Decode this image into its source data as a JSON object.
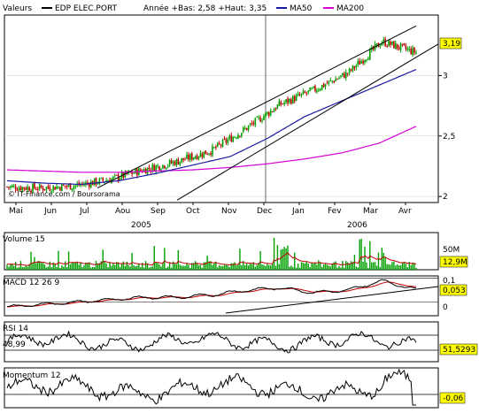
{
  "header": {
    "valeurs_label": "Valeurs",
    "series": [
      {
        "name": "EDP ELEC.PORT",
        "color": "#000000"
      },
      {
        "name": "MA50",
        "color": "#1a1aa0"
      },
      {
        "name": "MA200",
        "color": "#d400d4"
      }
    ],
    "range_text": "Année +Bas: 2,58 +Haut: 3,35"
  },
  "colors": {
    "up_candle": "#00a000",
    "down_candle": "#c00000",
    "volume_bar": "#00a000",
    "volume_avg": "#c00000",
    "macd_line": "#000000",
    "signal_line": "#c00000",
    "ma50": "#1a1aa0",
    "ma200": "#d400d4",
    "grid": "#000000",
    "value_box_bg": "#ffff00"
  },
  "chart_data": [
    {
      "id": "price",
      "type": "candlestick",
      "ylim": [
        1.95,
        3.5
      ],
      "y_ticks": [
        "3",
        "2,5",
        "2"
      ],
      "y_tick_values": [
        3.0,
        2.5,
        2.0
      ],
      "x_months": [
        "Mai",
        "Jun",
        "Jul",
        "Aou",
        "Sep",
        "Oct",
        "Nov",
        "Dec",
        "Jan",
        "Fev",
        "Mar",
        "Avr"
      ],
      "x_years": [
        "2005",
        "2006"
      ],
      "current_value_label": "3,19",
      "current_value": 3.19,
      "watermark": "© IT-Finance.com / Boursorama",
      "close_monthly": [
        2.08,
        2.07,
        2.09,
        2.14,
        2.22,
        2.29,
        2.38,
        2.56,
        2.76,
        2.88,
        3.02,
        3.28,
        3.19
      ],
      "ma50_monthly": [
        2.13,
        2.11,
        2.1,
        2.13,
        2.19,
        2.26,
        2.33,
        2.48,
        2.66,
        2.79,
        2.92,
        3.05
      ],
      "ma200_monthly": [
        2.22,
        2.21,
        2.2,
        2.2,
        2.21,
        2.22,
        2.24,
        2.27,
        2.31,
        2.36,
        2.44,
        2.58
      ]
    },
    {
      "id": "volume",
      "type": "bar",
      "label": "Volume 15",
      "axis_label": "50M",
      "axis_value": 50,
      "current_value_label": "12,9M",
      "current_value": 12.9
    },
    {
      "id": "macd",
      "type": "line",
      "label": "MACD 12 26 9",
      "y_ticks": [
        "0,1",
        "0"
      ],
      "y_tick_values": [
        0.1,
        0
      ],
      "current_value_label": "0,053",
      "current_value": 0.053,
      "macd_monthly": [
        -0.02,
        -0.01,
        0.0,
        0.01,
        0.02,
        0.02,
        0.03,
        0.05,
        0.06,
        0.04,
        0.05,
        0.09,
        0.053
      ]
    },
    {
      "id": "rsi",
      "type": "line",
      "label": "RSI 14",
      "left_value_label": "48,99",
      "current_value_label": "51,5293",
      "current_value": 51.5293,
      "levels": [
        70,
        30
      ]
    },
    {
      "id": "momentum",
      "type": "line",
      "label": "Momentum 12",
      "current_value_label": "-0,06",
      "current_value": -0.06
    }
  ]
}
